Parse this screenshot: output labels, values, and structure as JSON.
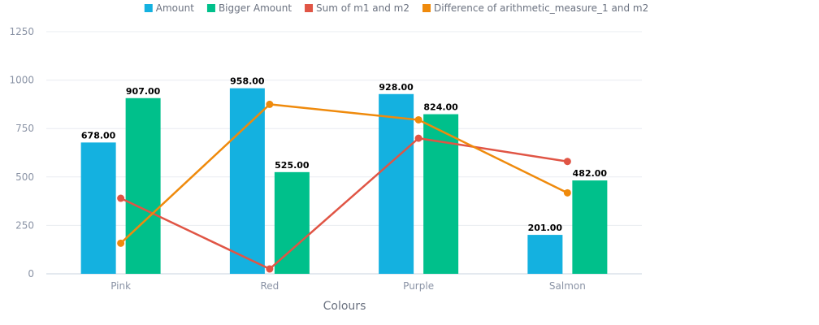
{
  "chart_data": {
    "type": "bar",
    "title": "",
    "xlabel": "Colours",
    "ylabel": "",
    "ylim": [
      0,
      1250
    ],
    "yticks": [
      0,
      250,
      500,
      750,
      1000,
      1250
    ],
    "grid": true,
    "legend_position": "top",
    "categories": [
      "Pink",
      "Red",
      "Purple",
      "Salmon"
    ],
    "series": [
      {
        "name": "Amount",
        "type": "bar",
        "color": "#14b1e0",
        "values": [
          678,
          958,
          928,
          201
        ],
        "labels": [
          "678.00",
          "958.00",
          "928.00",
          "201.00"
        ]
      },
      {
        "name": "Bigger Amount",
        "type": "bar",
        "color": "#00c08b",
        "values": [
          907,
          525,
          824,
          482
        ],
        "labels": [
          "907.00",
          "525.00",
          "824.00",
          "482.00"
        ]
      },
      {
        "name": "Sum of m1 and m2",
        "type": "line",
        "color": "#e05545",
        "values": [
          390,
          25,
          700,
          580
        ]
      },
      {
        "name": "Difference of arithmetic_measure_1 and m2",
        "type": "line",
        "color": "#ef8a0c",
        "values": [
          158,
          875,
          795,
          418
        ]
      }
    ]
  }
}
